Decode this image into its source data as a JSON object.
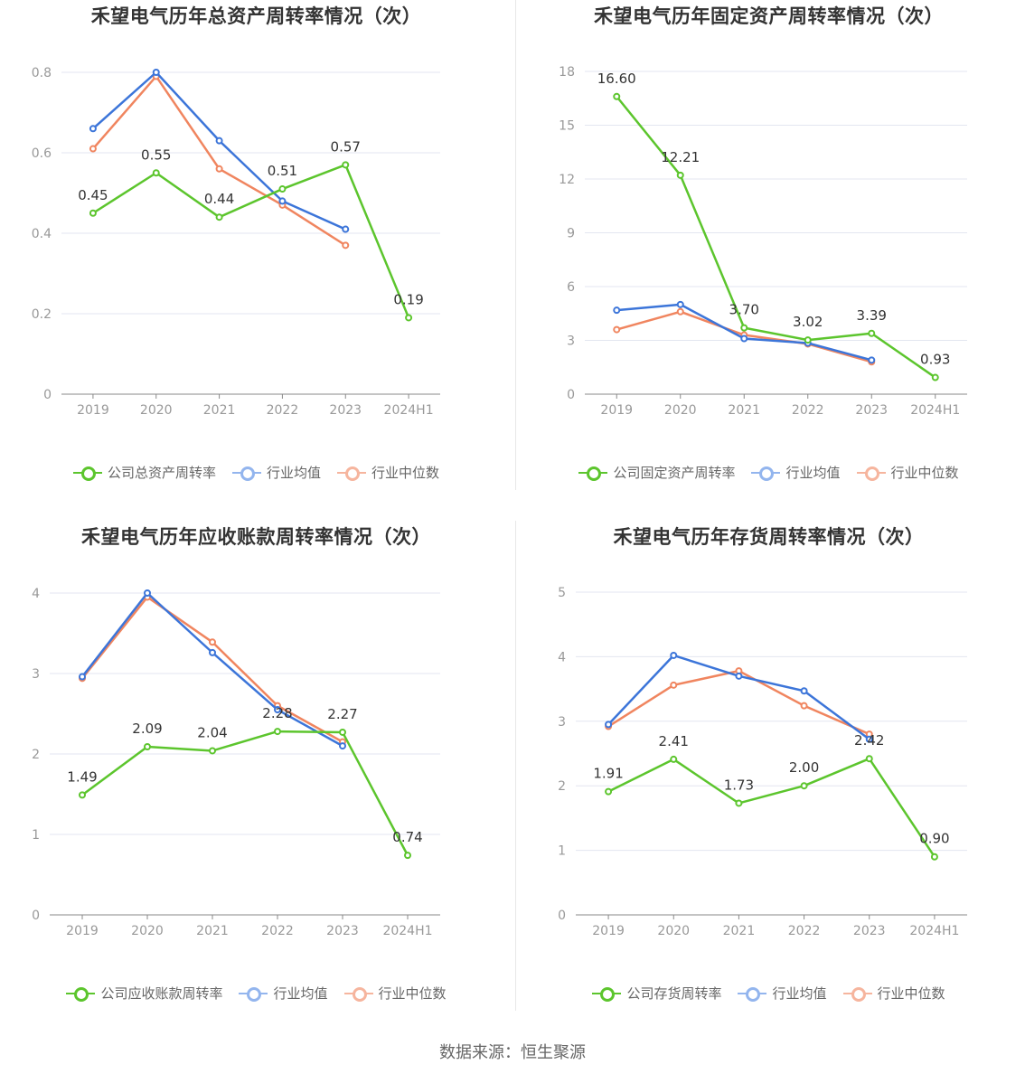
{
  "source": "数据来源：恒生聚源",
  "colors": {
    "company": "#5cc52d",
    "avg": "#3c75d9",
    "median": "#f0855f",
    "grid": "#e3e6f0",
    "axis": "#999999"
  },
  "chart_data": [
    {
      "type": "line",
      "title": "禾望电气历年总资产周转率情况（次）",
      "categories": [
        "2019",
        "2020",
        "2021",
        "2022",
        "2023",
        "2024H1"
      ],
      "yticks": [
        0,
        0.2,
        0.4,
        0.6,
        0.8
      ],
      "ylim": [
        0,
        0.8
      ],
      "series": [
        {
          "name": "公司总资产周转率",
          "color": "#5cc52d",
          "values": [
            0.45,
            0.55,
            0.44,
            0.51,
            0.57,
            0.19
          ],
          "labels": [
            "0.45",
            "0.55",
            "0.44",
            "0.51",
            "0.57",
            "0.19"
          ]
        },
        {
          "name": "行业均值",
          "color": "#3c75d9",
          "values": [
            0.66,
            0.8,
            0.63,
            0.48,
            0.41,
            null
          ]
        },
        {
          "name": "行业中位数",
          "color": "#f0855f",
          "values": [
            0.61,
            0.79,
            0.56,
            0.47,
            0.37,
            null
          ]
        }
      ]
    },
    {
      "type": "line",
      "title": "禾望电气历年固定资产周转率情况（次）",
      "categories": [
        "2019",
        "2020",
        "2021",
        "2022",
        "2023",
        "2024H1"
      ],
      "yticks": [
        0,
        3,
        6,
        9,
        12,
        15,
        18
      ],
      "ylim": [
        0,
        18
      ],
      "series": [
        {
          "name": "公司固定资产周转率",
          "color": "#5cc52d",
          "values": [
            16.6,
            12.21,
            3.7,
            3.02,
            3.39,
            0.93
          ],
          "labels": [
            "16.60",
            "12.21",
            "3.70",
            "3.02",
            "3.39",
            "0.93"
          ]
        },
        {
          "name": "行业均值",
          "color": "#3c75d9",
          "values": [
            4.68,
            5.0,
            3.1,
            2.85,
            1.9,
            null
          ]
        },
        {
          "name": "行业中位数",
          "color": "#f0855f",
          "values": [
            3.6,
            4.6,
            3.3,
            2.8,
            1.8,
            null
          ]
        }
      ]
    },
    {
      "type": "line",
      "title": "禾望电气历年应收账款周转率情况（次）",
      "categories": [
        "2019",
        "2020",
        "2021",
        "2022",
        "2023",
        "2024H1"
      ],
      "yticks": [
        0,
        1,
        2,
        3,
        4
      ],
      "ylim": [
        0,
        4
      ],
      "series": [
        {
          "name": "公司应收账款周转率",
          "color": "#5cc52d",
          "values": [
            1.49,
            2.09,
            2.04,
            2.28,
            2.27,
            0.74
          ],
          "labels": [
            "1.49",
            "2.09",
            "2.04",
            "2.28",
            "2.27",
            "0.74"
          ]
        },
        {
          "name": "行业均值",
          "color": "#3c75d9",
          "values": [
            2.96,
            4.0,
            3.26,
            2.55,
            2.1,
            null
          ]
        },
        {
          "name": "行业中位数",
          "color": "#f0855f",
          "values": [
            2.94,
            3.95,
            3.39,
            2.6,
            2.15,
            null
          ]
        }
      ]
    },
    {
      "type": "line",
      "title": "禾望电气历年存货周转率情况（次）",
      "categories": [
        "2019",
        "2020",
        "2021",
        "2022",
        "2023",
        "2024H1"
      ],
      "yticks": [
        0,
        1,
        2,
        3,
        4,
        5
      ],
      "ylim": [
        0,
        5
      ],
      "series": [
        {
          "name": "公司存货周转率",
          "color": "#5cc52d",
          "values": [
            1.91,
            2.41,
            1.73,
            2.0,
            2.42,
            0.9
          ],
          "labels": [
            "1.91",
            "2.41",
            "1.73",
            "2.00",
            "2.42",
            "0.90"
          ]
        },
        {
          "name": "行业均值",
          "color": "#3c75d9",
          "values": [
            2.95,
            4.02,
            3.7,
            3.47,
            2.72,
            null
          ]
        },
        {
          "name": "行业中位数",
          "color": "#f0855f",
          "values": [
            2.92,
            3.56,
            3.78,
            3.24,
            2.8,
            null
          ]
        }
      ]
    }
  ]
}
